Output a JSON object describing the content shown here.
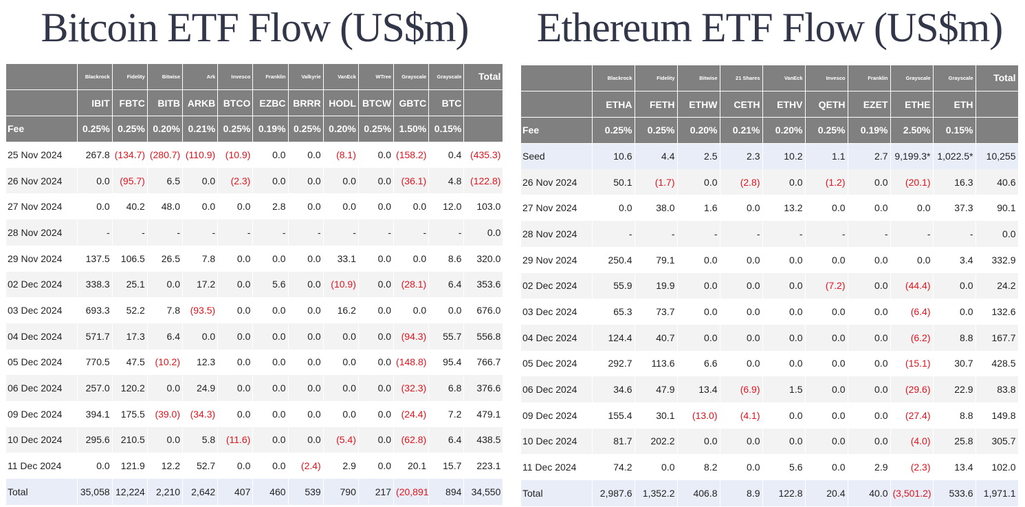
{
  "tables": [
    {
      "title": "Bitcoin ETF Flow (US$m)",
      "issuers": [
        "Blackrock",
        "Fidelity",
        "Bitwise",
        "Ark",
        "Invesco",
        "Franklin",
        "Valkyrie",
        "VanEck",
        "WTree",
        "Grayscale",
        "Grayscale",
        "Total"
      ],
      "tickers": [
        "IBIT",
        "FBTC",
        "BITB",
        "ARKB",
        "BTCO",
        "EZBC",
        "BRRR",
        "HODL",
        "BTCW",
        "GBTC",
        "BTC"
      ],
      "fee_label": "Fee",
      "fees": [
        "0.25%",
        "0.25%",
        "0.20%",
        "0.21%",
        "0.25%",
        "0.19%",
        "0.25%",
        "0.20%",
        "0.25%",
        "1.50%",
        "0.15%"
      ],
      "rows": [
        [
          "25 Nov 2024",
          "267.8",
          "(134.7)",
          "(280.7)",
          "(110.9)",
          "(10.9)",
          "0.0",
          "0.0",
          "(8.1)",
          "0.0",
          "(158.2)",
          "0.4",
          "(435.3)"
        ],
        [
          "26 Nov 2024",
          "0.0",
          "(95.7)",
          "6.5",
          "0.0",
          "(2.3)",
          "0.0",
          "0.0",
          "0.0",
          "0.0",
          "(36.1)",
          "4.8",
          "(122.8)"
        ],
        [
          "27 Nov 2024",
          "0.0",
          "40.2",
          "48.0",
          "0.0",
          "0.0",
          "2.8",
          "0.0",
          "0.0",
          "0.0",
          "0.0",
          "12.0",
          "103.0"
        ],
        [
          "28 Nov 2024",
          "-",
          "-",
          "-",
          "-",
          "-",
          "-",
          "-",
          "-",
          "-",
          "-",
          "-",
          "0.0"
        ],
        [
          "29 Nov 2024",
          "137.5",
          "106.5",
          "26.5",
          "7.8",
          "0.0",
          "0.0",
          "0.0",
          "33.1",
          "0.0",
          "0.0",
          "8.6",
          "320.0"
        ],
        [
          "02 Dec 2024",
          "338.3",
          "25.1",
          "0.0",
          "17.2",
          "0.0",
          "5.6",
          "0.0",
          "(10.9)",
          "0.0",
          "(28.1)",
          "6.4",
          "353.6"
        ],
        [
          "03 Dec 2024",
          "693.3",
          "52.2",
          "7.8",
          "(93.5)",
          "0.0",
          "0.0",
          "0.0",
          "16.2",
          "0.0",
          "0.0",
          "0.0",
          "676.0"
        ],
        [
          "04 Dec 2024",
          "571.7",
          "17.3",
          "6.4",
          "0.0",
          "0.0",
          "0.0",
          "0.0",
          "0.0",
          "0.0",
          "(94.3)",
          "55.7",
          "556.8"
        ],
        [
          "05 Dec 2024",
          "770.5",
          "47.5",
          "(10.2)",
          "12.3",
          "0.0",
          "0.0",
          "0.0",
          "0.0",
          "0.0",
          "(148.8)",
          "95.4",
          "766.7"
        ],
        [
          "06 Dec 2024",
          "257.0",
          "120.2",
          "0.0",
          "24.9",
          "0.0",
          "0.0",
          "0.0",
          "0.0",
          "0.0",
          "(32.3)",
          "6.8",
          "376.6"
        ],
        [
          "09 Dec 2024",
          "394.1",
          "175.5",
          "(39.0)",
          "(34.3)",
          "0.0",
          "0.0",
          "0.0",
          "0.0",
          "0.0",
          "(24.4)",
          "7.2",
          "479.1"
        ],
        [
          "10 Dec 2024",
          "295.6",
          "210.5",
          "0.0",
          "5.8",
          "(11.6)",
          "0.0",
          "0.0",
          "(5.4)",
          "0.0",
          "(62.8)",
          "6.4",
          "438.5"
        ],
        [
          "11 Dec 2024",
          "0.0",
          "121.9",
          "12.2",
          "52.7",
          "0.0",
          "0.0",
          "(2.4)",
          "2.9",
          "0.0",
          "20.1",
          "15.7",
          "223.1"
        ],
        [
          "Total",
          "35,058",
          "12,224",
          "2,210",
          "2,642",
          "407",
          "460",
          "539",
          "790",
          "217",
          "(20,891)",
          "894",
          "34,550"
        ]
      ]
    },
    {
      "title": "Ethereum ETF Flow (US$m)",
      "issuers": [
        "Blackrock",
        "Fidelity",
        "Bitwise",
        "21 Shares",
        "VanEck",
        "Invesco",
        "Franklin",
        "Grayscale",
        "Grayscale",
        "Total"
      ],
      "tickers": [
        "ETHA",
        "FETH",
        "ETHW",
        "CETH",
        "ETHV",
        "QETH",
        "EZET",
        "ETHE",
        "ETH"
      ],
      "fee_label": "Fee",
      "fees": [
        "0.25%",
        "0.25%",
        "0.20%",
        "0.21%",
        "0.20%",
        "0.25%",
        "0.19%",
        "2.50%",
        "0.15%"
      ],
      "rows": [
        [
          "Seed",
          "10.6",
          "4.4",
          "2.5",
          "2.3",
          "10.2",
          "1.1",
          "2.7",
          "9,199.3*",
          "1,022.5*",
          "10,255"
        ],
        [
          "26 Nov 2024",
          "50.1",
          "(1.7)",
          "0.0",
          "(2.8)",
          "0.0",
          "(1.2)",
          "0.0",
          "(20.1)",
          "16.3",
          "40.6"
        ],
        [
          "27 Nov 2024",
          "0.0",
          "38.0",
          "1.6",
          "0.0",
          "13.2",
          "0.0",
          "0.0",
          "0.0",
          "37.3",
          "90.1"
        ],
        [
          "28 Nov 2024",
          "-",
          "-",
          "-",
          "-",
          "-",
          "-",
          "-",
          "-",
          "-",
          "0.0"
        ],
        [
          "29 Nov 2024",
          "250.4",
          "79.1",
          "0.0",
          "0.0",
          "0.0",
          "0.0",
          "0.0",
          "0.0",
          "3.4",
          "332.9"
        ],
        [
          "02 Dec 2024",
          "55.9",
          "19.9",
          "0.0",
          "0.0",
          "0.0",
          "(7.2)",
          "0.0",
          "(44.4)",
          "0.0",
          "24.2"
        ],
        [
          "03 Dec 2024",
          "65.3",
          "73.7",
          "0.0",
          "0.0",
          "0.0",
          "0.0",
          "0.0",
          "(6.4)",
          "0.0",
          "132.6"
        ],
        [
          "04 Dec 2024",
          "124.4",
          "40.7",
          "0.0",
          "0.0",
          "0.0",
          "0.0",
          "0.0",
          "(6.2)",
          "8.8",
          "167.7"
        ],
        [
          "05 Dec 2024",
          "292.7",
          "113.6",
          "6.6",
          "0.0",
          "0.0",
          "0.0",
          "0.0",
          "(15.1)",
          "30.7",
          "428.5"
        ],
        [
          "06 Dec 2024",
          "34.6",
          "47.9",
          "13.4",
          "(6.9)",
          "1.5",
          "0.0",
          "0.0",
          "(29.6)",
          "22.9",
          "83.8"
        ],
        [
          "09 Dec 2024",
          "155.4",
          "30.1",
          "(13.0)",
          "(4.1)",
          "0.0",
          "0.0",
          "0.0",
          "(27.4)",
          "8.8",
          "149.8"
        ],
        [
          "10 Dec 2024",
          "81.7",
          "202.2",
          "0.0",
          "0.0",
          "0.0",
          "0.0",
          "0.0",
          "(4.0)",
          "25.8",
          "305.7"
        ],
        [
          "11 Dec 2024",
          "74.2",
          "0.0",
          "8.2",
          "0.0",
          "5.6",
          "0.0",
          "2.9",
          "(2.3)",
          "13.4",
          "102.0"
        ],
        [
          "Total",
          "2,987.6",
          "1,352.2",
          "406.8",
          "8.9",
          "122.8",
          "20.4",
          "40.0",
          "(3,501.2)",
          "533.6",
          "1,971.1"
        ]
      ]
    }
  ]
}
